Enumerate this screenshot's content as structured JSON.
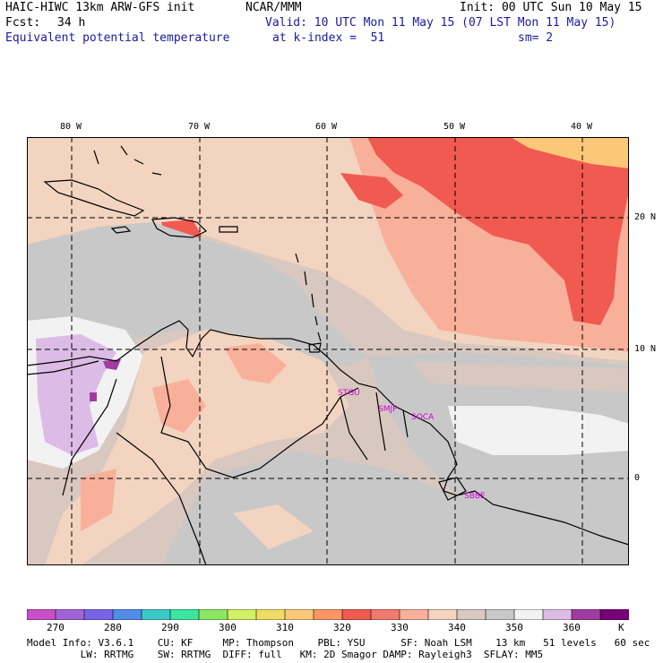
{
  "header": {
    "model": "HAIC-HIWC 13km ARW-GFS init",
    "org": "NCAR/MMM",
    "init": "Init: 00 UTC Sun 10 May 15",
    "fcst_label": "Fcst:",
    "fcst_value": "34 h",
    "valid": "Valid: 10 UTC Mon 11 May 15 (07 LST Mon 11 May 15)",
    "field": "Equivalent potential temperature",
    "level": "at k-index =  51",
    "smooth": "sm= 2"
  },
  "axes": {
    "longitudes": [
      "80 W",
      "70 W",
      "60 W",
      "50 W",
      "40 W"
    ],
    "latitudes": [
      "20 N",
      "10 N",
      "0"
    ]
  },
  "stations": [
    "STGU",
    "SMJP",
    "SOCA",
    "SBBE"
  ],
  "colorbar": {
    "labels": [
      "270",
      "280",
      "290",
      "300",
      "310",
      "320",
      "330",
      "340",
      "350",
      "360",
      "K"
    ],
    "colors": [
      "#c84fc8",
      "#a064d8",
      "#7864e6",
      "#508ce8",
      "#3cc8c8",
      "#3ce6a0",
      "#8ce664",
      "#d2f064",
      "#f0dc64",
      "#fac878",
      "#fa9664",
      "#f05a50",
      "#f07a6e",
      "#f8b09a",
      "#f2d4c0",
      "#d8c8c0",
      "#c8c8c8",
      "#f2f2f2",
      "#dcbce6",
      "#a03ca0",
      "#780078"
    ]
  },
  "footer": {
    "line1": "Model Info: V3.6.1    CU: KF     MP: Thompson    PBL: YSU      SF: Noah LSM    13 km   51 levels   60 sec",
    "line2": "         LW: RRTMG    SW: RRTMG  DIFF: full   KM: 2D Smagor DAMP: Rayleigh3  SFLAY: MM5"
  }
}
